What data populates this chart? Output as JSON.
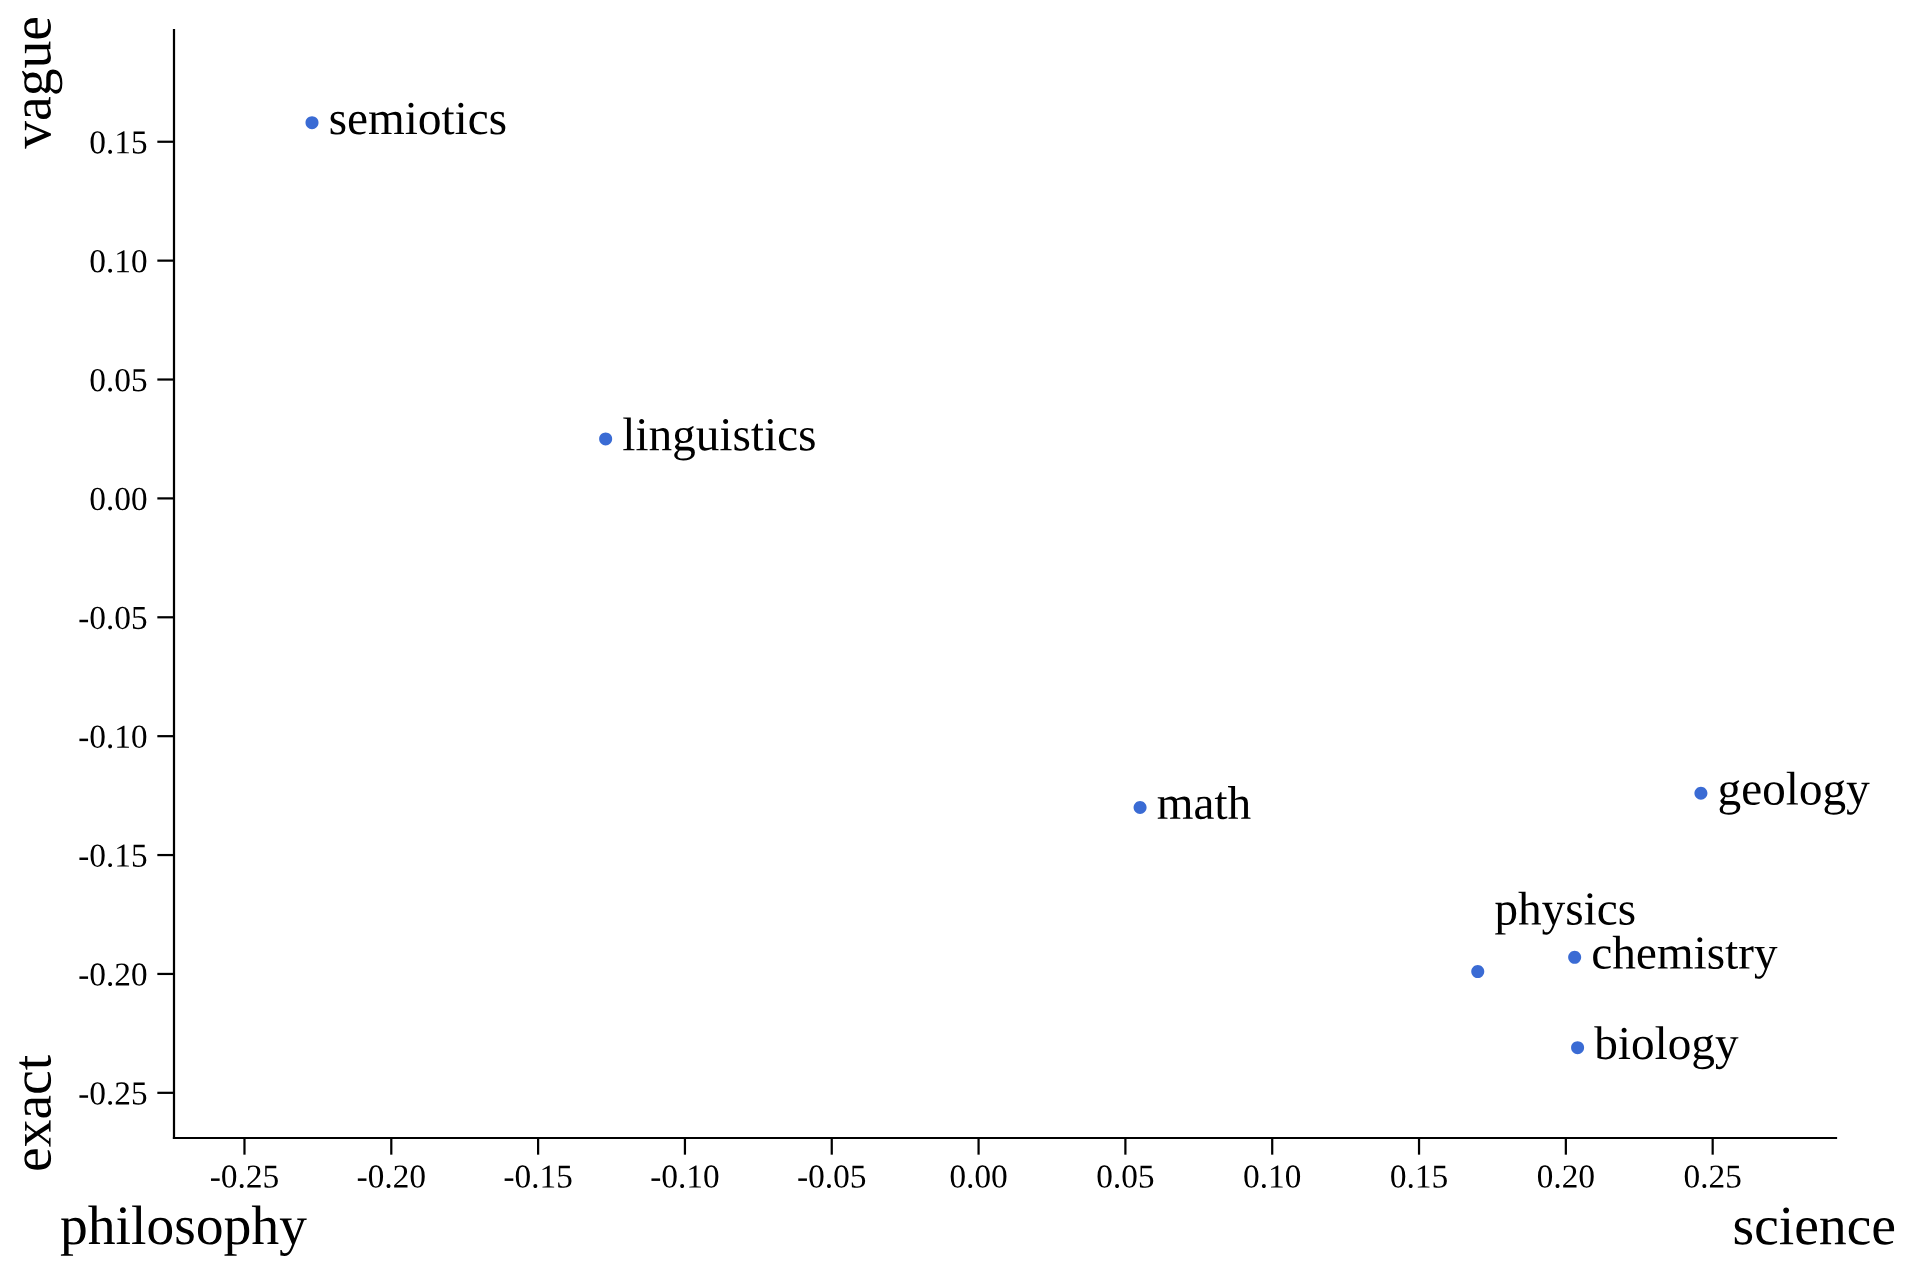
{
  "chart_data": {
    "type": "scatter",
    "marker": "circle",
    "grid": false,
    "legend": false,
    "xlim": [
      -0.274,
      0.292
    ],
    "ylim": [
      -0.269,
      0.197
    ],
    "xticks": [
      {
        "value": -0.25,
        "label": "-0.25"
      },
      {
        "value": -0.2,
        "label": "-0.20"
      },
      {
        "value": -0.15,
        "label": "-0.15"
      },
      {
        "value": -0.1,
        "label": "-0.10"
      },
      {
        "value": -0.05,
        "label": "-0.05"
      },
      {
        "value": 0,
        "label": "0.00"
      },
      {
        "value": 0.05,
        "label": "0.05"
      },
      {
        "value": 0.1,
        "label": "0.10"
      },
      {
        "value": 0.15,
        "label": "0.15"
      },
      {
        "value": 0.2,
        "label": "0.20"
      },
      {
        "value": 0.25,
        "label": "0.25"
      }
    ],
    "yticks": [
      {
        "value": -0.25,
        "label": "-0.25"
      },
      {
        "value": -0.2,
        "label": "-0.20"
      },
      {
        "value": -0.15,
        "label": "-0.15"
      },
      {
        "value": -0.1,
        "label": "-0.10"
      },
      {
        "value": -0.05,
        "label": "-0.05"
      },
      {
        "value": 0,
        "label": "0.00"
      },
      {
        "value": 0.05,
        "label": "0.05"
      },
      {
        "value": 0.1,
        "label": "0.10"
      },
      {
        "value": 0.15,
        "label": "0.15"
      }
    ],
    "series": [
      {
        "name": "semiotics",
        "color": "#3a6bd4",
        "x": [
          -0.227
        ],
        "values": [
          0.158
        ]
      },
      {
        "name": "linguistics",
        "color": "#3a6bd4",
        "x": [
          -0.127
        ],
        "values": [
          0.025
        ]
      },
      {
        "name": "math",
        "color": "#3a6bd4",
        "x": [
          0.055
        ],
        "values": [
          -0.13
        ]
      },
      {
        "name": "geology",
        "color": "#3a6bd4",
        "x": [
          0.246
        ],
        "values": [
          -0.124
        ]
      },
      {
        "name": "chemistry",
        "color": "#3a6bd4",
        "x": [
          0.203
        ],
        "values": [
          -0.193
        ]
      },
      {
        "name": "physics",
        "color": "#3a6bd4",
        "x": [
          0.17
        ],
        "values": [
          -0.199
        ]
      },
      {
        "name": "biology",
        "color": "#3a6bd4",
        "x": [
          0.204
        ],
        "values": [
          -0.231
        ]
      }
    ],
    "annotations": [
      "philosophy",
      "science",
      "vague",
      "exact"
    ]
  }
}
